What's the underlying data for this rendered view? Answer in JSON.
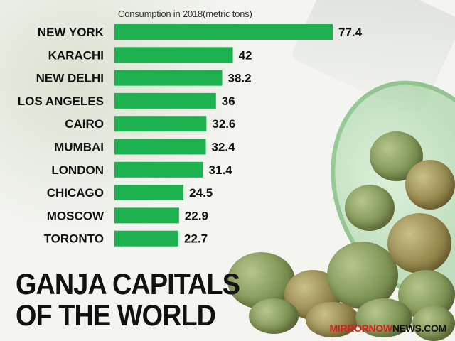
{
  "chart_data": {
    "type": "bar",
    "orientation": "horizontal",
    "title": "Consumption in 2018(metric tons)",
    "categories": [
      "NEW YORK",
      "KARACHI",
      "NEW DELHI",
      "LOS ANGELES",
      "CAIRO",
      "MUMBAI",
      "LONDON",
      "CHICAGO",
      "MOSCOW",
      "TORONTO"
    ],
    "values": [
      77.4,
      42,
      38.2,
      36,
      32.6,
      32.4,
      31.4,
      24.5,
      22.9,
      22.7
    ],
    "value_labels": [
      "77.4",
      "42",
      "38.2",
      "36",
      "32.6",
      "32.4",
      "31.4",
      "24.5",
      "22.9",
      "22.7"
    ],
    "bar_color": "#1db04e",
    "grid": false,
    "legend": "none"
  },
  "headline": [
    "GANJA CAPITALS",
    "OF THE WORLD"
  ],
  "source": {
    "part1": "MIRRORNOW",
    "part2": "NEWS.COM",
    "accent": "#d7201e"
  }
}
